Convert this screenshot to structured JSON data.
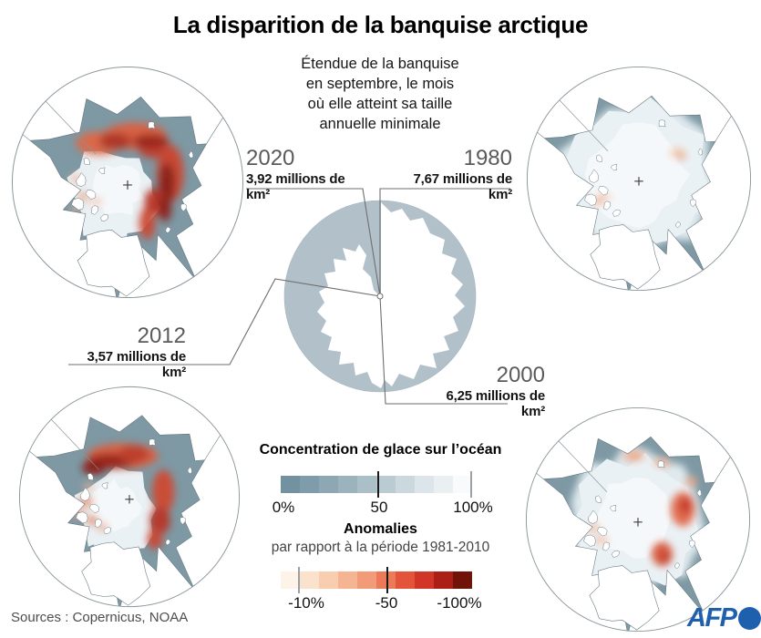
{
  "title": "La disparition de la banquise arctique",
  "subtitle": "Étendue de la banquise\nen septembre, le mois\noù elle atteint sa taille\nannuelle minimale",
  "maps": [
    {
      "year": "2020",
      "extent": "3,92 millions de km²"
    },
    {
      "year": "1980",
      "extent": "7,67 millions de km²"
    },
    {
      "year": "2012",
      "extent": "3,57 millions de km²"
    },
    {
      "year": "2000",
      "extent": "6,25 millions de km²"
    }
  ],
  "legend_concentration": {
    "title": "Concentration de glace sur l’océan",
    "tick_left": "0%",
    "tick_mid": "50",
    "tick_right": "100%",
    "colors": [
      "#72929f",
      "#7f9caa",
      "#8da8b3",
      "#9bb3bd",
      "#aabfc7",
      "#bacbd2",
      "#cbd8dd",
      "#dce5e9",
      "#eaf0f2",
      "#f8fafb"
    ]
  },
  "legend_anomalies": {
    "title": "Anomalies",
    "subtitle": "par rapport à la période 1981-2010",
    "tick_left": "-10%",
    "tick_mid": "-50",
    "tick_right": "-100%",
    "colors": [
      "#fdf3e8",
      "#fbe2cd",
      "#f8cdb0",
      "#f5b593",
      "#f19b78",
      "#ec7a59",
      "#e3543b",
      "#d03527",
      "#ab1f16",
      "#701309"
    ]
  },
  "sources": "Sources : Copernicus, NOAA",
  "branding": {
    "logo_text": "AFP",
    "color": "#1e5fae"
  },
  "palette": {
    "ocean": "#7e99a4",
    "ice": "#eaf1f5",
    "land": "#ffffff",
    "pie_fill": "#b2c1c9",
    "leader_line": "#6e6e6e",
    "anomaly_dark": "#8c1a12"
  }
}
